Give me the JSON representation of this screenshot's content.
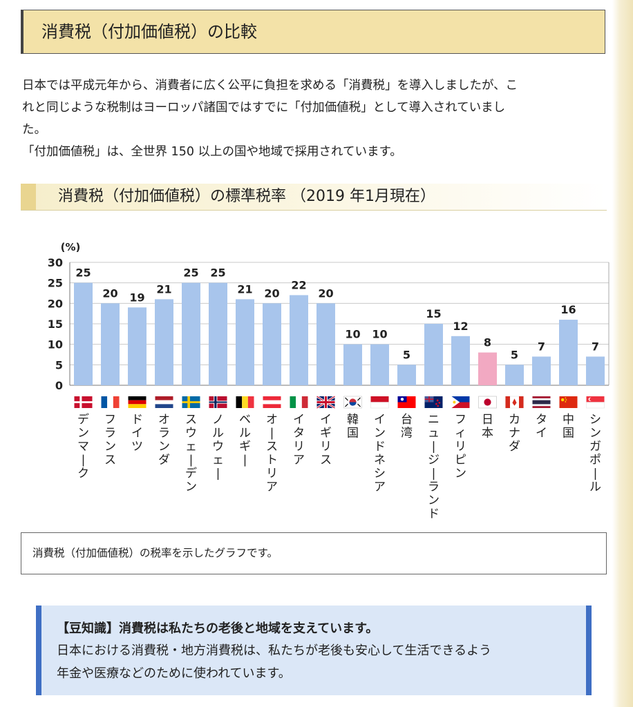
{
  "section": {
    "title": "消費税（付加価値税）の比較"
  },
  "intro": {
    "line1": "日本では平成元年から、消費者に広く公平に負担を求める「消費税」を導入しましたが、こ",
    "line2": "れと同じような税制はヨーロッパ諸国ではすでに「付加価値税」として導入されていまし",
    "line3": "た。",
    "line4": "「付加価値税」は、全世界 150 以上の国や地域で採用されています。"
  },
  "chart_title": "消費税（付加価値税）の標準税率 （2019 年1月現在）",
  "chart_data": {
    "type": "bar",
    "ylabel": "(%)",
    "ylim": [
      0,
      30
    ],
    "yticks": [
      0,
      5,
      10,
      15,
      20,
      25,
      30
    ],
    "grid": true,
    "categories": [
      "デンマーク",
      "フランス",
      "ドイツ",
      "オランダ",
      "スウェーデン",
      "ノルウェー",
      "ベルギー",
      "オーストリア",
      "イタリア",
      "イギリス",
      "韓国",
      "インドネシア",
      "台湾",
      "ニュージーランド",
      "フィリピン",
      "日本",
      "カナダ",
      "タイ",
      "中国",
      "シンガポール"
    ],
    "values": [
      25,
      20,
      19,
      21,
      25,
      25,
      21,
      20,
      22,
      20,
      10,
      10,
      5,
      15,
      12,
      8,
      5,
      7,
      16,
      7
    ],
    "value_labels": [
      "25",
      "20",
      "19",
      "21",
      "25",
      "25",
      "21",
      "20",
      "22",
      "20",
      "10",
      "10",
      "5",
      "15",
      "12",
      "8",
      "5",
      "7",
      "16",
      "7"
    ],
    "bar_color": "#a8c5ec",
    "highlight_color": "#f2a9c2",
    "highlight_category": "日本",
    "flags": [
      "denmark-flag-icon",
      "france-flag-icon",
      "germany-flag-icon",
      "netherlands-flag-icon",
      "sweden-flag-icon",
      "norway-flag-icon",
      "belgium-flag-icon",
      "austria-flag-icon",
      "italy-flag-icon",
      "uk-flag-icon",
      "korea-flag-icon",
      "indonesia-flag-icon",
      "taiwan-flag-icon",
      "new-zealand-flag-icon",
      "philippines-flag-icon",
      "japan-flag-icon",
      "canada-flag-icon",
      "thailand-flag-icon",
      "china-flag-icon",
      "singapore-flag-icon"
    ]
  },
  "caption": "消費税（付加価値税）の税率を示したグラフです。",
  "info": {
    "head": "【豆知識】消費税は私たちの老後と地域を支えています。",
    "body1": "日本における消費税・地方消費税は、私たちが老後も安心して生活できるよう",
    "body2": "年金や医療などのために使われています。"
  },
  "colors": {
    "title_bg": "#f3e2a8",
    "info_bg": "#dbe7f7",
    "info_border": "#3f6fc4"
  }
}
